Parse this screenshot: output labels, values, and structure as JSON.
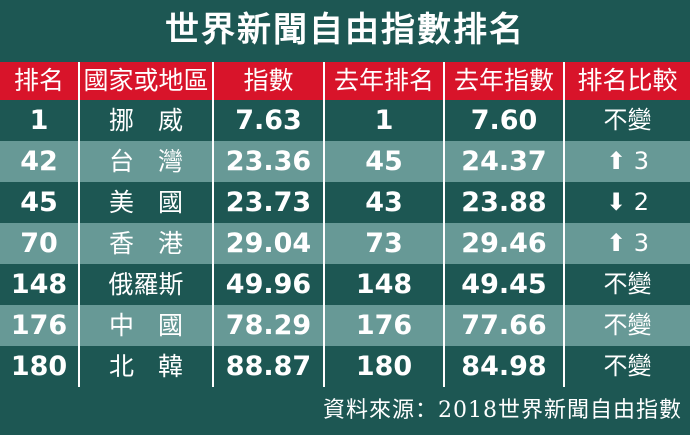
{
  "header": {
    "title": "世界新聞自由指數排名"
  },
  "table": {
    "columns": [
      "排名",
      "國家或地區",
      "指數",
      "去年排名",
      "去年指數",
      "排名比較"
    ],
    "rows": [
      [
        "1",
        "挪威",
        "7.63",
        "1",
        "7.60",
        "不變"
      ],
      [
        "42",
        "台灣",
        "23.36",
        "45",
        "24.37",
        "⬆ 3"
      ],
      [
        "45",
        "美國",
        "23.73",
        "43",
        "23.88",
        "⬇ 2"
      ],
      [
        "70",
        "香港",
        "29.04",
        "73",
        "29.46",
        "⬆ 3"
      ],
      [
        "148",
        "俄羅斯",
        "49.96",
        "148",
        "49.45",
        "不變"
      ],
      [
        "176",
        "中國",
        "78.29",
        "176",
        "77.66",
        "不變"
      ],
      [
        "180",
        "北韓",
        "88.87",
        "180",
        "84.98",
        "不變"
      ]
    ]
  },
  "footer": {
    "source": "資料來源：2018世界新聞自由指數"
  }
}
